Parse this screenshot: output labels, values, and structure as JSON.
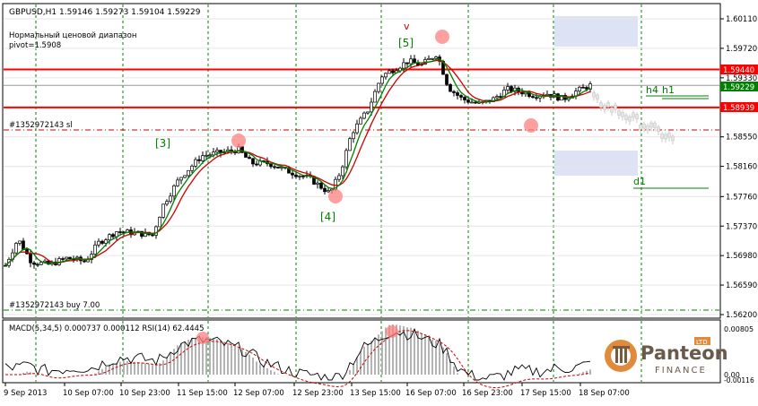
{
  "header": {
    "symbol_line": "GBPUSD,H1  1.59146 1.59273 1.59104 1.59229",
    "range_label": "Нормальный ценовой диапазон",
    "pivot_label": "pivot=1.5908"
  },
  "colors": {
    "bull_candle": "#000000",
    "ma_fast": "#008000",
    "ma_slow": "#cc0000",
    "level_line": "#ff0000",
    "grid": "#008000",
    "current_price_bg": "#008000",
    "highlight_circle": "#ff8080"
  },
  "annotations": {
    "wave3": "[3]",
    "wave4": "[4]",
    "wave5": "[5]",
    "v_mark": "v",
    "sl_label": "#1352972143 sl",
    "buy_label": "#1352972143 buy 7.00",
    "h4": "h4",
    "h1": "h1",
    "d1": "d1"
  },
  "price_axis": {
    "ticks": [
      "1.60110",
      "1.59720",
      "1.59330",
      "1.58550",
      "1.58160",
      "1.57760",
      "1.57370",
      "1.56980",
      "1.56590",
      "1.56200"
    ],
    "level_upper": "1.59440",
    "current_price": "1.59229",
    "level_lower": "1.58939"
  },
  "indicator": {
    "label": "MACD(5,34,5) 0.000737 0.000112  RSI(14) 62.4445",
    "ticks": [
      "0.00805",
      "0.00",
      "-0.00116"
    ]
  },
  "time_axis": [
    "9 Sep 2013",
    "10 Sep 07:00",
    "10 Sep 23:00",
    "11 Sep 15:00",
    "12 Sep 07:00",
    "12 Sep 23:00",
    "13 Sep 15:00",
    "16 Sep 07:00",
    "16 Sep 23:00",
    "17 Sep 15:00",
    "18 Sep 07:00"
  ],
  "logo": {
    "name": "Panteon",
    "sub": "FINANCE",
    "badge": "LTD"
  },
  "chart_data": {
    "type": "line",
    "title": "GBPUSD,H1",
    "ylim": [
      1.562,
      1.6011
    ],
    "x": [
      "9 Sep 2013",
      "10 Sep 07:00",
      "10 Sep 23:00",
      "11 Sep 15:00",
      "12 Sep 07:00",
      "12 Sep 23:00",
      "13 Sep 15:00",
      "16 Sep 07:00",
      "16 Sep 23:00",
      "17 Sep 15:00",
      "18 Sep 07:00"
    ],
    "series": [
      {
        "name": "GBPUSD",
        "values": [
          1.5675,
          1.569,
          1.5722,
          1.583,
          1.584,
          1.579,
          1.588,
          1.5975,
          1.5905,
          1.59,
          1.5923
        ]
      }
    ],
    "macd_ylim": [
      -0.00116,
      0.00805
    ]
  }
}
